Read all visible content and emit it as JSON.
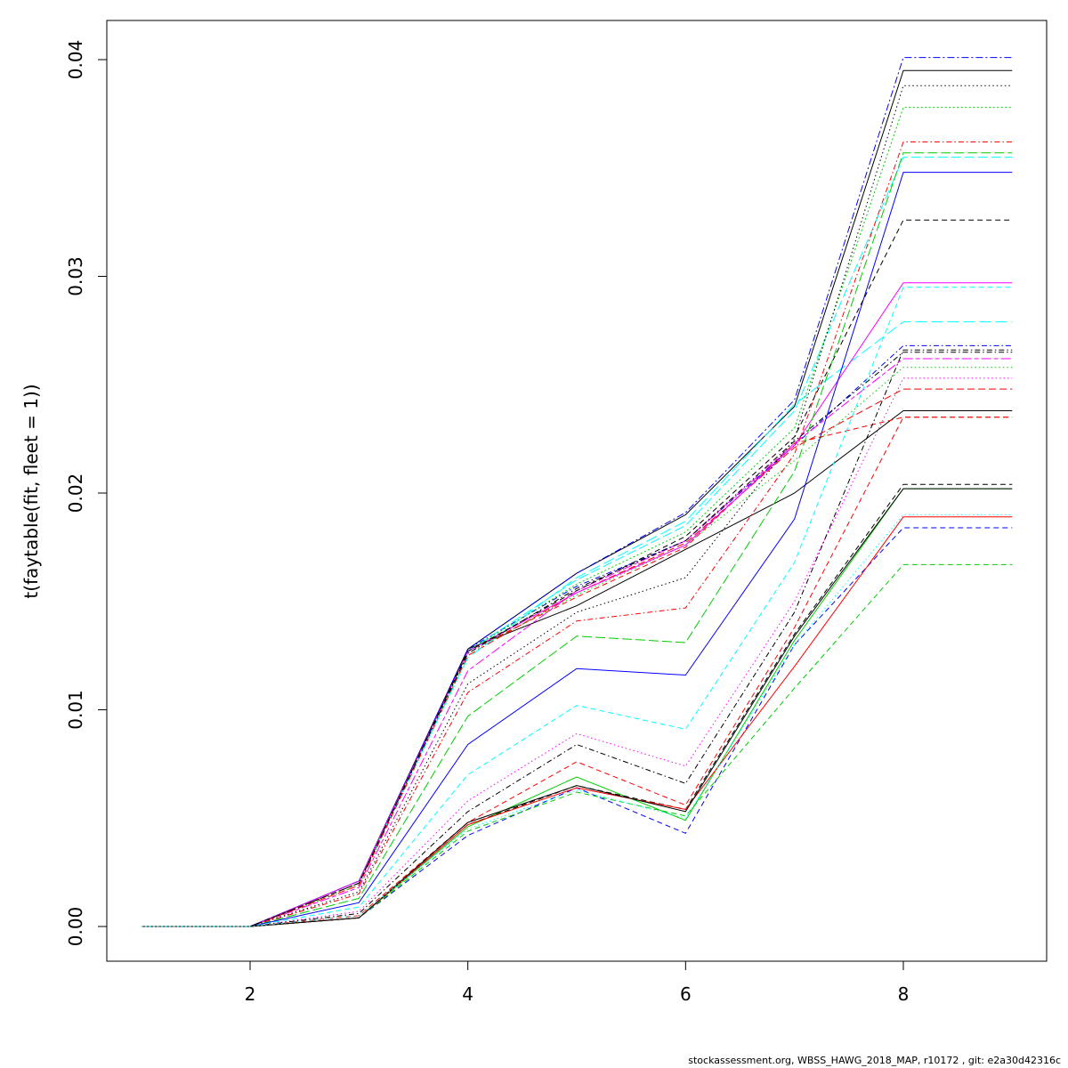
{
  "chart_data": {
    "type": "line",
    "xlabel": "",
    "ylabel": "t(faytable(fit, fleet = 1))",
    "xlim": [
      0.5,
      9.5
    ],
    "ylim": [
      -0.0016,
      0.0418
    ],
    "x_ticks": [
      2,
      4,
      6,
      8
    ],
    "y_ticks": [
      0.0,
      0.01,
      0.02,
      0.03,
      0.04
    ],
    "x_tick_labels": [
      "2",
      "4",
      "6",
      "8"
    ],
    "y_tick_labels": [
      "0.00",
      "0.01",
      "0.02",
      "0.03",
      "0.04"
    ],
    "grid": false,
    "x": [
      1,
      2,
      3,
      4,
      5,
      6,
      7,
      8,
      9
    ],
    "series": [
      {
        "color": "#000000",
        "dash": "solid",
        "values": [
          0,
          0,
          0.0021,
          0.0128,
          0.0148,
          0.0174,
          0.02,
          0.0238,
          0.0238
        ]
      },
      {
        "color": "#ff0000",
        "dash": "dashed",
        "values": [
          0,
          0,
          0.002,
          0.0127,
          0.0152,
          0.0175,
          0.0223,
          0.0235,
          0.0235
        ]
      },
      {
        "color": "#00cd00",
        "dash": "dotted",
        "values": [
          0,
          0,
          0.0019,
          0.0126,
          0.0153,
          0.0176,
          0.0215,
          0.0258,
          0.0258
        ]
      },
      {
        "color": "#0000ff",
        "dash": "dotdash",
        "values": [
          0,
          0,
          0.0021,
          0.0128,
          0.0157,
          0.0178,
          0.0222,
          0.0268,
          0.0268
        ]
      },
      {
        "color": "#00ffff",
        "dash": "longdash",
        "values": [
          0,
          0,
          0.0021,
          0.0127,
          0.016,
          0.0185,
          0.0238,
          0.0355,
          0.0355
        ]
      },
      {
        "color": "#ff00ff",
        "dash": "twodash",
        "values": [
          0,
          0,
          0.0018,
          0.0118,
          0.0155,
          0.0178,
          0.0223,
          0.0262,
          0.0262
        ]
      },
      {
        "color": "#000000",
        "dash": "solid2",
        "values": [
          0,
          0,
          0.0021,
          0.0128,
          0.0163,
          0.019,
          0.024,
          0.0395,
          0.0395
        ]
      },
      {
        "color": "#ff0000",
        "dash": "dashed2",
        "values": [
          0,
          0,
          0.0019,
          0.0125,
          0.0154,
          0.0177,
          0.0221,
          0.0248,
          0.0248
        ]
      },
      {
        "color": "#00cd00",
        "dash": "dotted2",
        "values": [
          0,
          0,
          0.002,
          0.0127,
          0.0158,
          0.0182,
          0.023,
          0.0378,
          0.0378
        ]
      },
      {
        "color": "#0000ff",
        "dash": "dotdash2",
        "values": [
          0,
          0,
          0.0021,
          0.0128,
          0.0163,
          0.0191,
          0.0243,
          0.0401,
          0.0401
        ]
      },
      {
        "color": "#00ffff",
        "dash": "longdash2",
        "values": [
          0,
          0,
          0.0021,
          0.0124,
          0.0161,
          0.0187,
          0.0241,
          0.0279,
          0.0279
        ]
      },
      {
        "color": "#ff00ff",
        "dash": "solid",
        "values": [
          0,
          0,
          0.0021,
          0.0127,
          0.0154,
          0.0176,
          0.0222,
          0.0297,
          0.0297
        ]
      },
      {
        "color": "#000000",
        "dash": "dotted",
        "values": [
          0,
          0,
          0.0016,
          0.0112,
          0.0145,
          0.0161,
          0.0225,
          0.0388,
          0.0388
        ]
      },
      {
        "color": "#ff0000",
        "dash": "dotdash",
        "values": [
          0,
          0,
          0.0015,
          0.0108,
          0.0141,
          0.0147,
          0.0218,
          0.0362,
          0.0362
        ]
      },
      {
        "color": "#00cd00",
        "dash": "longdash",
        "values": [
          0,
          0,
          0.0013,
          0.0097,
          0.0134,
          0.0131,
          0.021,
          0.0357,
          0.0357
        ]
      },
      {
        "color": "#0000ff",
        "dash": "solid",
        "values": [
          0,
          0,
          0.0011,
          0.0084,
          0.0119,
          0.0116,
          0.0188,
          0.0348,
          0.0348
        ]
      },
      {
        "color": "#000000",
        "dash": "dashed",
        "values": [
          0,
          0,
          0.002,
          0.0127,
          0.0155,
          0.018,
          0.0226,
          0.0326,
          0.0326
        ]
      },
      {
        "color": "#00ffff",
        "dash": "dashed",
        "values": [
          0,
          0,
          0.0009,
          0.007,
          0.0102,
          0.0091,
          0.0168,
          0.0295,
          0.0295
        ]
      },
      {
        "color": "#000000",
        "dash": "dotdash",
        "values": [
          0,
          0,
          0.002,
          0.0126,
          0.0156,
          0.0178,
          0.0224,
          0.0265,
          0.0265
        ]
      },
      {
        "color": "#ff00ff",
        "dash": "dotted",
        "values": [
          0,
          0,
          0.0007,
          0.0058,
          0.0089,
          0.0074,
          0.015,
          0.0253,
          0.0253
        ]
      },
      {
        "color": "#000000",
        "dash": "dotdash",
        "values": [
          0,
          0,
          0.0006,
          0.0053,
          0.0084,
          0.0066,
          0.0145,
          0.0266,
          0.0266
        ]
      },
      {
        "color": "#ff0000",
        "dash": "dashed",
        "values": [
          0,
          0,
          0.0005,
          0.0048,
          0.0076,
          0.0056,
          0.0138,
          0.0235,
          0.0235
        ]
      },
      {
        "color": "#00cd00",
        "dash": "solid",
        "values": [
          0,
          0,
          0.0004,
          0.0046,
          0.0069,
          0.0049,
          0.0132,
          0.0202,
          0.0202
        ]
      },
      {
        "color": "#000000",
        "dash": "dashed",
        "values": [
          0,
          0,
          0.0004,
          0.0047,
          0.0065,
          0.0054,
          0.0135,
          0.0204,
          0.0204
        ]
      },
      {
        "color": "#0000ff",
        "dash": "dashed",
        "values": [
          0,
          0,
          0.0004,
          0.0042,
          0.0064,
          0.0043,
          0.013,
          0.0184,
          0.0184
        ]
      },
      {
        "color": "#00cd00",
        "dash": "dashed",
        "values": [
          0,
          0,
          0.0004,
          0.0044,
          0.0062,
          0.0051,
          0.011,
          0.0167,
          0.0167
        ]
      },
      {
        "color": "#ff0000",
        "dash": "solid",
        "values": [
          0,
          0,
          0.0004,
          0.0047,
          0.0064,
          0.0054,
          0.012,
          0.0189,
          0.0189
        ]
      },
      {
        "color": "#000000",
        "dash": "solid",
        "values": [
          0,
          0,
          0.0004,
          0.0048,
          0.0065,
          0.0053,
          0.0134,
          0.0202,
          0.0202
        ]
      },
      {
        "color": "#00ffff",
        "dash": "dotted",
        "values": [
          0,
          0,
          0.0005,
          0.0045,
          0.0063,
          0.005,
          0.013,
          0.019,
          0.019
        ]
      }
    ]
  },
  "footer": {
    "text": "stockassessment.org, WBSS_HAWG_2018_MAP, r10172 , git: e2a30d42316c"
  }
}
